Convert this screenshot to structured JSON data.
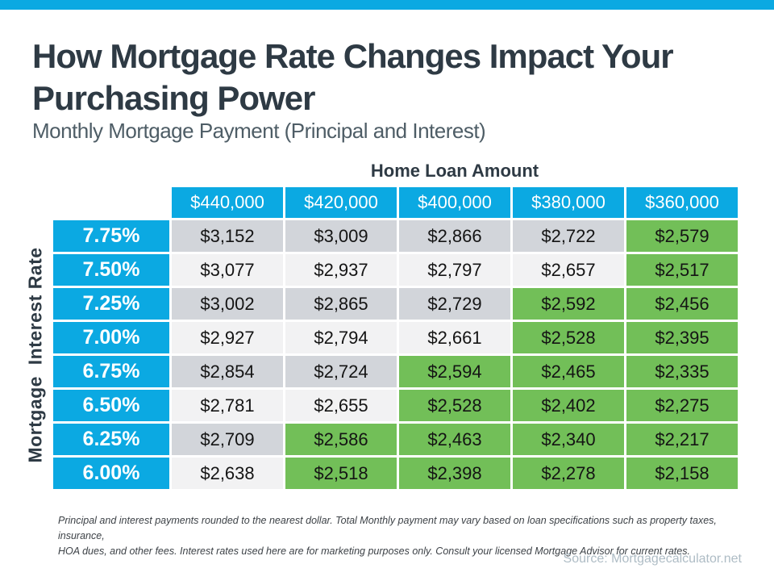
{
  "colors": {
    "blue": "#0BA9E2",
    "green": "#72BF58",
    "grayRow": "#D2D5DA",
    "lightRow": "#F2F2F3",
    "dark": "#2E3A44",
    "subtitle": "#4E5D66",
    "disclaimer": "#3D4247",
    "source": "#AEBCC5"
  },
  "header": {
    "title_line1": "How Mortgage Rate Changes Impact Your",
    "title_line2": "Purchasing Power",
    "subtitle": "Monthly Mortgage Payment (Principal and Interest)"
  },
  "table": {
    "column_group_title": "Home Loan Amount",
    "row_group_title": "Mortgage  Interest Rate",
    "columns": [
      "$440,000",
      "$420,000",
      "$400,000",
      "$380,000",
      "$360,000"
    ],
    "rows": [
      {
        "rate": "7.75%",
        "values": [
          "$3,152",
          "$3,009",
          "$2,866",
          "$2,722",
          "$2,579"
        ],
        "green": [
          false,
          false,
          false,
          false,
          true
        ]
      },
      {
        "rate": "7.50%",
        "values": [
          "$3,077",
          "$2,937",
          "$2,797",
          "$2,657",
          "$2,517"
        ],
        "green": [
          false,
          false,
          false,
          false,
          true
        ]
      },
      {
        "rate": "7.25%",
        "values": [
          "$3,002",
          "$2,865",
          "$2,729",
          "$2,592",
          "$2,456"
        ],
        "green": [
          false,
          false,
          false,
          true,
          true
        ]
      },
      {
        "rate": "7.00%",
        "values": [
          "$2,927",
          "$2,794",
          "$2,661",
          "$2,528",
          "$2,395"
        ],
        "green": [
          false,
          false,
          false,
          true,
          true
        ]
      },
      {
        "rate": "6.75%",
        "values": [
          "$2,854",
          "$2,724",
          "$2,594",
          "$2,465",
          "$2,335"
        ],
        "green": [
          false,
          false,
          true,
          true,
          true
        ]
      },
      {
        "rate": "6.50%",
        "values": [
          "$2,781",
          "$2,655",
          "$2,528",
          "$2,402",
          "$2,275"
        ],
        "green": [
          false,
          false,
          true,
          true,
          true
        ]
      },
      {
        "rate": "6.25%",
        "values": [
          "$2,709",
          "$2,586",
          "$2,463",
          "$2,340",
          "$2,217"
        ],
        "green": [
          false,
          true,
          true,
          true,
          true
        ]
      },
      {
        "rate": "6.00%",
        "values": [
          "$2,638",
          "$2,518",
          "$2,398",
          "$2,278",
          "$2,158"
        ],
        "green": [
          false,
          true,
          true,
          true,
          true
        ]
      }
    ]
  },
  "footer": {
    "disclaimer_line1": "Principal and interest payments rounded to the nearest dollar. Total Monthly payment may vary based on loan specifications such as property taxes,  insurance,",
    "disclaimer_line2": "HOA dues, and other fees. Interest rates used here are for marketing purposes only. Consult your licensed Mortgage Advisor for current rates.",
    "source": "Source: Mortgagecalculator.net"
  },
  "chart_data": {
    "type": "table",
    "title": "How Mortgage Rate Changes Impact Your Purchasing Power",
    "subtitle": "Monthly Mortgage Payment (Principal and Interest)",
    "column_header": "Home Loan Amount",
    "row_header": "Mortgage Interest Rate",
    "columns_loan_amounts": [
      440000,
      420000,
      400000,
      380000,
      360000
    ],
    "rows": [
      {
        "rate_percent": 7.75,
        "payments": [
          3152,
          3009,
          2866,
          2722,
          2579
        ],
        "highlighted_green": [
          2579
        ]
      },
      {
        "rate_percent": 7.5,
        "payments": [
          3077,
          2937,
          2797,
          2657,
          2517
        ],
        "highlighted_green": [
          2517
        ]
      },
      {
        "rate_percent": 7.25,
        "payments": [
          3002,
          2865,
          2729,
          2592,
          2456
        ],
        "highlighted_green": [
          2592,
          2456
        ]
      },
      {
        "rate_percent": 7.0,
        "payments": [
          2927,
          2794,
          2661,
          2528,
          2395
        ],
        "highlighted_green": [
          2528,
          2395
        ]
      },
      {
        "rate_percent": 6.75,
        "payments": [
          2854,
          2724,
          2594,
          2465,
          2335
        ],
        "highlighted_green": [
          2594,
          2465,
          2335
        ]
      },
      {
        "rate_percent": 6.5,
        "payments": [
          2781,
          2655,
          2528,
          2402,
          2275
        ],
        "highlighted_green": [
          2528,
          2402,
          2275
        ]
      },
      {
        "rate_percent": 6.25,
        "payments": [
          2709,
          2586,
          2463,
          2340,
          2217
        ],
        "highlighted_green": [
          2586,
          2463,
          2340,
          2217
        ]
      },
      {
        "rate_percent": 6.0,
        "payments": [
          2638,
          2518,
          2398,
          2278,
          2158
        ],
        "highlighted_green": [
          2518,
          2398,
          2278,
          2158
        ]
      }
    ]
  }
}
